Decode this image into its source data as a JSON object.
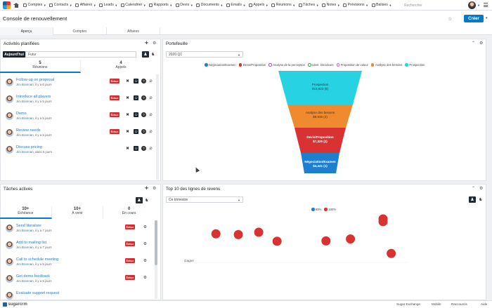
{
  "nav": {
    "items": [
      {
        "label": "Comptes"
      },
      {
        "label": "Contacts"
      },
      {
        "label": "Affaires"
      },
      {
        "label": "Leads"
      },
      {
        "label": "Calendrier"
      },
      {
        "label": "Rapports"
      },
      {
        "label": "Devis"
      },
      {
        "label": "Documents"
      },
      {
        "label": "Emails"
      },
      {
        "label": "Appels"
      },
      {
        "label": "Réunions"
      },
      {
        "label": "Tâches"
      },
      {
        "label": "Notes"
      },
      {
        "label": "Prévisions"
      },
      {
        "label": "Balises"
      }
    ],
    "search_placeholder": "Rechercher"
  },
  "header": {
    "title": "Console de renouvellement",
    "create_label": "Créer",
    "tabs": [
      {
        "label": "Aperçu"
      },
      {
        "label": "Comptes"
      },
      {
        "label": "Affaires"
      }
    ]
  },
  "activities": {
    "title": "Activités planifiées",
    "today_label": "Aujourd'hui",
    "future_label": "Futur",
    "counters": [
      {
        "num": "5",
        "label": "Réunions"
      },
      {
        "num": "4",
        "label": "Appels"
      }
    ],
    "items": [
      {
        "name": "Follow-up on proposal",
        "who": "Jim Brennan",
        "when": ", il y a 6 jours",
        "badge": "Échue"
      },
      {
        "name": "Introduce all players",
        "who": "Jim Brennan",
        "when": ", il y a 5 jours",
        "badge": "Échue"
      },
      {
        "name": "Demo",
        "who": "Jim Brennan",
        "when": ", il y a 5 jours",
        "badge": "Échue"
      },
      {
        "name": "Review needs",
        "who": "Jim Brennan",
        "when": ", il y a 5 jours",
        "badge": "Échue"
      },
      {
        "name": "Discuss pricing",
        "who": "Jim Brennan",
        "when": ", dans 5 jours",
        "badge": ""
      }
    ]
  },
  "tasks": {
    "title": "Tâches actives",
    "counters": [
      {
        "num": "10+",
        "label": "Échéance"
      },
      {
        "num": "10+",
        "label": "À venir"
      },
      {
        "num": "0",
        "label": "En cours"
      }
    ],
    "items": [
      {
        "name": "Send literature",
        "who": "Jim Brennan",
        "when": ", il y a 7 jours",
        "badge": "Échue"
      },
      {
        "name": "Add to mailing list",
        "who": "Jim Brennan",
        "when": ", il y a 7 jours",
        "badge": "Échue"
      },
      {
        "name": "Call to schedule meeting",
        "who": "Jim Brennan",
        "when": ", il y a 5 jours",
        "badge": "Échue"
      },
      {
        "name": "Get demo feedback",
        "who": "Jim Brennan",
        "when": ", il y a 5 jours",
        "badge": "Échue"
      },
      {
        "name": "Evaluate support request",
        "who": "",
        "when": "",
        "badge": ""
      }
    ]
  },
  "pipeline": {
    "title": "Portefeuille",
    "period": "2020 Q1",
    "legend": [
      {
        "label": "Négociation/Examen",
        "color": "#1e7fcf",
        "filled": true
      },
      {
        "label": "Devis/Proposition",
        "color": "#d83232",
        "filled": true
      },
      {
        "label": "Analyse de la perception",
        "color": "#8e5bc9",
        "filled": false
      },
      {
        "label": "Ident. Décideurs",
        "color": "#3ea84a",
        "filled": false
      },
      {
        "label": "Proposition de valeur",
        "color": "#d96ab7",
        "filled": false
      },
      {
        "label": "Analyse des besoins",
        "color": "#ef8a2e",
        "filled": true
      },
      {
        "label": "Prospection",
        "color": "#27d3e3",
        "filled": true
      }
    ],
    "stages": [
      {
        "name": "Prospection",
        "value": "$15,823 (8)"
      },
      {
        "name": "Analyse des besoins",
        "value": "$8,936 (2)"
      },
      {
        "name": "Devis/Proposition",
        "value": "$7,329 (2)"
      },
      {
        "name": "Négociation/Examen",
        "value": "$4,441 (1)"
      }
    ]
  },
  "revenue": {
    "title": "Top 10 des lignes de revenu",
    "filter": "Ce trimestre",
    "legend": [
      {
        "label": "65%",
        "color": "#1e7fcf"
      },
      {
        "label": "100%",
        "color": "#d83232"
      }
    ],
    "y_label": "Gagné"
  },
  "chart_data": {
    "type": "scatter",
    "series": [
      {
        "name": "100%",
        "color": "#d83232",
        "points": [
          [
            0.08,
            0.62
          ],
          [
            0.19,
            0.6
          ],
          [
            0.29,
            0.66
          ],
          [
            0.38,
            0.43
          ],
          [
            0.62,
            0.44
          ],
          [
            0.74,
            0.49
          ],
          [
            0.9,
            1.0
          ],
          [
            0.9,
            0.93
          ],
          [
            0.94,
            0.12
          ]
        ]
      },
      {
        "name": "65%",
        "color": "#1e7fcf",
        "points": []
      }
    ],
    "xlabel": "",
    "ylabel": ""
  },
  "footer": {
    "brand": "sugarcrm",
    "items": [
      {
        "label": "Sugar Exchange"
      },
      {
        "label": "Mobile"
      },
      {
        "label": "Raccourcis"
      },
      {
        "label": "Aide"
      }
    ]
  }
}
